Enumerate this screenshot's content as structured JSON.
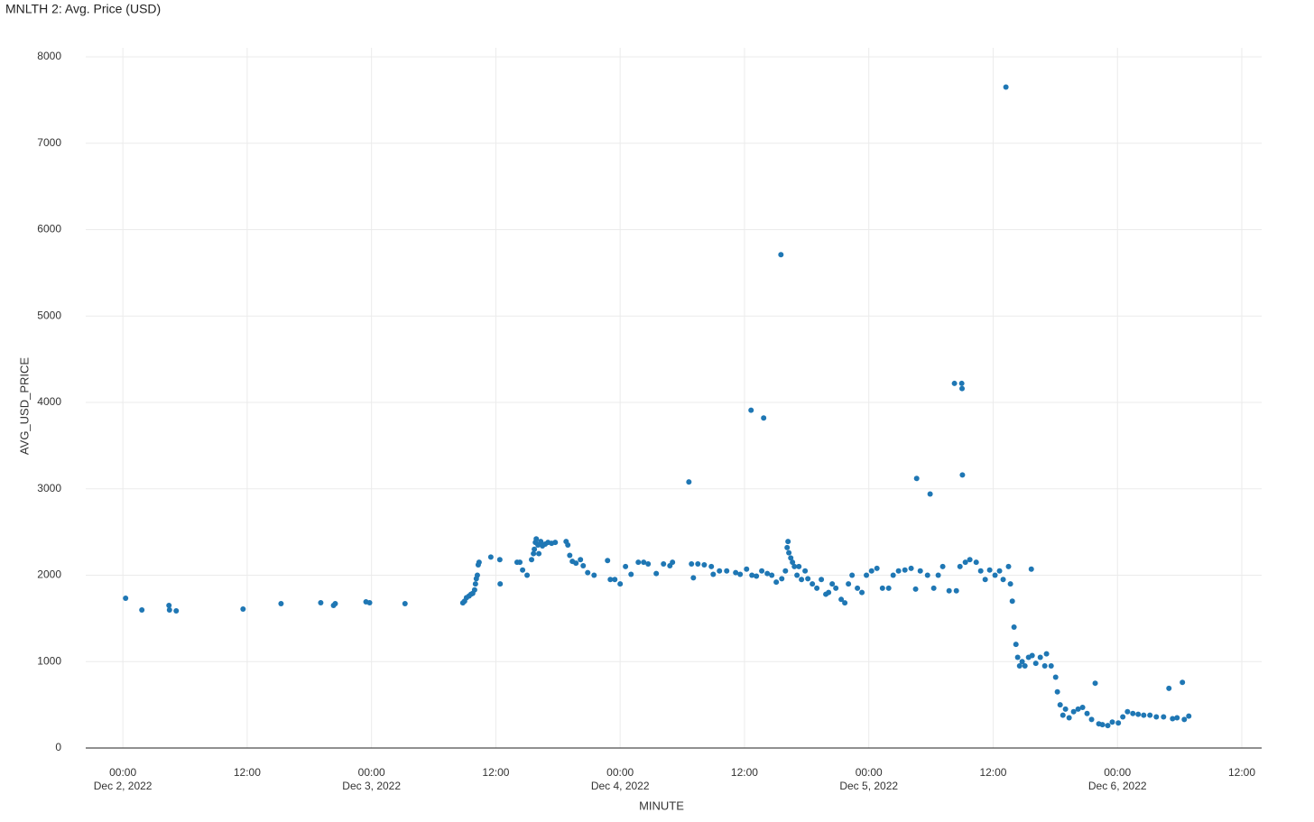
{
  "chart_data": {
    "type": "scatter",
    "title": "MNLTH 2: Avg. Price (USD)",
    "x_label": "MINUTE",
    "y_label": "AVG_USD_PRICE",
    "grid": true,
    "xlim": [
      "2022-12-01T20:25",
      "2022-12-06T13:55"
    ],
    "ylim": [
      0,
      8000
    ],
    "yticks": [
      0,
      1000,
      2000,
      3000,
      4000,
      5000,
      6000,
      7000,
      8000
    ],
    "xticks": [
      {
        "value": "2022-12-02T00:00",
        "label": "00:00",
        "date": "Dec 2, 2022"
      },
      {
        "value": "2022-12-02T12:00",
        "label": "12:00"
      },
      {
        "value": "2022-12-03T00:00",
        "label": "00:00",
        "date": "Dec 3, 2022"
      },
      {
        "value": "2022-12-03T12:00",
        "label": "12:00"
      },
      {
        "value": "2022-12-04T00:00",
        "label": "00:00",
        "date": "Dec 4, 2022"
      },
      {
        "value": "2022-12-04T12:00",
        "label": "12:00"
      },
      {
        "value": "2022-12-05T00:00",
        "label": "00:00",
        "date": "Dec 5, 2022"
      },
      {
        "value": "2022-12-05T12:00",
        "label": "12:00"
      },
      {
        "value": "2022-12-06T00:00",
        "label": "00:00",
        "date": "Dec 6, 2022"
      },
      {
        "value": "2022-12-06T12:00",
        "label": "12:00"
      }
    ],
    "series": [
      {
        "color": "#1f77b4",
        "x": [
          "2022-12-02T00:16",
          "2022-12-02T01:50",
          "2022-12-02T04:27",
          "2022-12-02T04:30",
          "2022-12-02T05:09",
          "2022-12-02T11:36",
          "2022-12-02T15:16",
          "2022-12-02T19:06",
          "2022-12-02T20:20",
          "2022-12-02T20:30",
          "2022-12-02T23:28",
          "2022-12-02T23:49",
          "2022-12-03T03:14",
          "2022-12-03T08:49",
          "2022-12-03T08:59",
          "2022-12-03T09:10",
          "2022-12-03T09:25",
          "2022-12-03T09:36",
          "2022-12-03T09:46",
          "2022-12-03T09:57",
          "2022-12-03T10:02",
          "2022-12-03T10:07",
          "2022-12-03T10:13",
          "2022-12-03T10:18",
          "2022-12-03T10:23",
          "2022-12-03T11:31",
          "2022-12-03T12:23",
          "2022-12-03T12:25",
          "2022-12-03T14:03",
          "2022-12-03T14:19",
          "2022-12-03T14:35",
          "2022-12-03T15:01",
          "2022-12-03T15:27",
          "2022-12-03T15:38",
          "2022-12-03T15:43",
          "2022-12-03T15:49",
          "2022-12-03T15:54",
          "2022-12-03T16:04",
          "2022-12-03T16:09",
          "2022-12-03T16:20",
          "2022-12-03T16:30",
          "2022-12-03T16:46",
          "2022-12-03T17:02",
          "2022-12-03T17:23",
          "2022-12-03T17:44",
          "2022-12-03T18:47",
          "2022-12-03T18:57",
          "2022-12-03T19:08",
          "2022-12-03T19:23",
          "2022-12-03T19:44",
          "2022-12-03T20:10",
          "2022-12-03T20:26",
          "2022-12-03T20:52",
          "2022-12-03T21:29",
          "2022-12-03T22:47",
          "2022-12-03T23:03",
          "2022-12-03T23:29",
          "2022-12-04T00:00",
          "2022-12-04T00:31",
          "2022-12-04T01:03",
          "2022-12-04T01:45",
          "2022-12-04T02:16",
          "2022-12-04T02:42",
          "2022-12-04T03:29",
          "2022-12-04T04:11",
          "2022-12-04T04:48",
          "2022-12-04T05:03",
          "2022-12-04T06:38",
          "2022-12-04T06:53",
          "2022-12-04T07:04",
          "2022-12-04T07:30",
          "2022-12-04T08:07",
          "2022-12-04T08:48",
          "2022-12-04T08:59",
          "2022-12-04T09:35",
          "2022-12-04T10:17",
          "2022-12-04T11:09",
          "2022-12-04T11:35",
          "2022-12-04T12:12",
          "2022-12-04T12:38",
          "2022-12-04T12:43",
          "2022-12-04T13:09",
          "2022-12-04T13:40",
          "2022-12-04T13:51",
          "2022-12-04T14:12",
          "2022-12-04T14:38",
          "2022-12-04T15:04",
          "2022-12-04T15:31",
          "2022-12-04T15:36",
          "2022-12-04T15:57",
          "2022-12-04T16:07",
          "2022-12-04T16:12",
          "2022-12-04T16:17",
          "2022-12-04T16:28",
          "2022-12-04T16:38",
          "2022-12-04T16:49",
          "2022-12-04T17:04",
          "2022-12-04T17:15",
          "2022-12-04T17:30",
          "2022-12-04T17:51",
          "2022-12-04T18:07",
          "2022-12-04T18:33",
          "2022-12-04T18:59",
          "2022-12-04T19:25",
          "2022-12-04T19:51",
          "2022-12-04T20:07",
          "2022-12-04T20:28",
          "2022-12-04T20:49",
          "2022-12-04T21:20",
          "2022-12-04T21:41",
          "2022-12-04T22:02",
          "2022-12-04T22:23",
          "2022-12-04T22:54",
          "2022-12-04T23:20",
          "2022-12-04T23:46",
          "2022-12-05T00:16",
          "2022-12-05T00:47",
          "2022-12-05T01:19",
          "2022-12-05T01:55",
          "2022-12-05T02:21",
          "2022-12-05T02:52",
          "2022-12-05T03:29",
          "2022-12-05T04:05",
          "2022-12-05T04:31",
          "2022-12-05T04:37",
          "2022-12-05T04:58",
          "2022-12-05T05:40",
          "2022-12-05T05:55",
          "2022-12-05T06:16",
          "2022-12-05T06:42",
          "2022-12-05T07:08",
          "2022-12-05T07:45",
          "2022-12-05T08:16",
          "2022-12-05T08:27",
          "2022-12-05T08:48",
          "2022-12-05T08:58",
          "2022-12-05T09:00",
          "2022-12-05T09:02",
          "2022-12-05T09:19",
          "2022-12-05T09:45",
          "2022-12-05T10:22",
          "2022-12-05T10:48",
          "2022-12-05T11:14",
          "2022-12-05T11:40",
          "2022-12-05T12:11",
          "2022-12-05T12:37",
          "2022-12-05T12:58",
          "2022-12-05T13:14",
          "2022-12-05T13:29",
          "2022-12-05T13:40",
          "2022-12-05T13:51",
          "2022-12-05T14:01",
          "2022-12-05T14:12",
          "2022-12-05T14:22",
          "2022-12-05T14:33",
          "2022-12-05T14:48",
          "2022-12-05T15:04",
          "2022-12-05T15:25",
          "2022-12-05T15:46",
          "2022-12-05T15:41",
          "2022-12-05T16:07",
          "2022-12-05T16:33",
          "2022-12-05T16:59",
          "2022-12-05T17:09",
          "2022-12-05T17:36",
          "2022-12-05T18:02",
          "2022-12-05T18:12",
          "2022-12-05T18:28",
          "2022-12-05T18:44",
          "2022-12-05T18:59",
          "2022-12-05T19:20",
          "2022-12-05T19:46",
          "2022-12-05T20:12",
          "2022-12-05T20:38",
          "2022-12-05T21:04",
          "2022-12-05T21:30",
          "2022-12-05T21:51",
          "2022-12-05T22:12",
          "2022-12-05T22:33",
          "2022-12-05T23:04",
          "2022-12-05T23:30",
          "2022-12-06T00:05",
          "2022-12-06T00:31",
          "2022-12-06T00:58",
          "2022-12-06T01:29",
          "2022-12-06T02:00",
          "2022-12-06T02:32",
          "2022-12-06T03:08",
          "2022-12-06T03:45",
          "2022-12-06T04:27",
          "2022-12-06T04:58",
          "2022-12-06T05:19",
          "2022-12-06T05:45",
          "2022-12-06T06:16",
          "2022-12-06T06:27",
          "2022-12-06T06:53"
        ],
        "values": [
          1734,
          1598,
          1650,
          1598,
          1588,
          1608,
          1671,
          1681,
          1650,
          1671,
          1692,
          1681,
          1671,
          1680,
          1700,
          1740,
          1760,
          1780,
          1790,
          1830,
          1900,
          1960,
          2000,
          2120,
          2150,
          2210,
          2180,
          1900,
          2150,
          2150,
          2060,
          2000,
          2180,
          2250,
          2300,
          2380,
          2420,
          2350,
          2250,
          2390,
          2340,
          2360,
          2380,
          2370,
          2380,
          2390,
          2350,
          2230,
          2160,
          2140,
          2180,
          2110,
          2030,
          2000,
          2170,
          1950,
          1950,
          1900,
          2100,
          2010,
          2150,
          2150,
          2130,
          2020,
          2130,
          2110,
          2150,
          3080,
          2130,
          1970,
          2130,
          2120,
          2100,
          2010,
          2050,
          2050,
          2030,
          2010,
          2070,
          3910,
          2000,
          1990,
          2050,
          3820,
          2020,
          2000,
          1920,
          5710,
          1960,
          2050,
          2320,
          2390,
          2260,
          2200,
          2150,
          2100,
          2000,
          2100,
          1950,
          2050,
          1960,
          1900,
          1850,
          1950,
          1780,
          1800,
          1900,
          1850,
          1720,
          1680,
          1900,
          2000,
          1850,
          1800,
          2000,
          2050,
          2080,
          1850,
          1850,
          2000,
          2050,
          2060,
          2080,
          1840,
          3120,
          2050,
          2000,
          2940,
          1850,
          2000,
          2100,
          1820,
          4220,
          1820,
          2100,
          4220,
          4160,
          3160,
          2150,
          2180,
          2150,
          2050,
          1950,
          2060,
          2000,
          2050,
          1950,
          7650,
          2100,
          1900,
          1700,
          1400,
          1200,
          1050,
          950,
          1000,
          950,
          1050,
          1070,
          2070,
          980,
          1050,
          950,
          1090,
          950,
          820,
          650,
          500,
          380,
          450,
          350,
          420,
          450,
          470,
          400,
          330,
          750,
          280,
          270,
          260,
          300,
          290,
          360,
          420,
          400,
          390,
          380,
          380,
          360,
          360,
          690,
          340,
          350,
          760,
          330,
          370
        ]
      }
    ]
  }
}
